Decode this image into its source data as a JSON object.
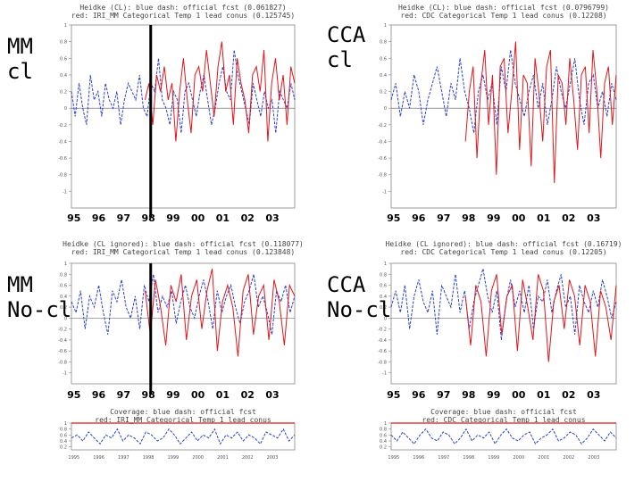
{
  "labels": {
    "mm_cl": [
      "MM",
      "cl"
    ],
    "cca_cl": [
      "CCA",
      "cl"
    ],
    "mm_nocl": [
      "MM",
      "No-cl"
    ],
    "cca_nocl": [
      "CCA",
      "No-cl"
    ]
  },
  "year_labels": [
    "95",
    "96",
    "97",
    "98",
    "99",
    "00",
    "01",
    "02",
    "03"
  ],
  "coverage_years": [
    "1995",
    "1996",
    "1997",
    "1998",
    "1999",
    "2000",
    "2001",
    "2002",
    "2003"
  ],
  "colors": {
    "official": "#2a3fcf",
    "tool": "#e0161b",
    "axis": "#888888",
    "marker": "#000000"
  },
  "chart_data": [
    {
      "type": "line",
      "title": "Heidke (CL): blue dash: official fcst (0.061827)",
      "subtitle": "red: IRI_MM Categorical Temp 1 lead conus (0.125745)",
      "ylim": [
        -1.2,
        1.0
      ],
      "yticks": [
        "1",
        "0.8",
        "0.6",
        "0.4",
        "0.2",
        "0",
        "-0.2",
        "-0.4",
        "-0.6",
        "-0.8",
        "-1"
      ],
      "series": [
        {
          "values": [
            0.2,
            -0.1,
            0.3,
            0.0,
            -0.2,
            0.4,
            0.1,
            0.2,
            -0.1,
            0.3,
            0.1,
            0.0,
            0.2,
            -0.2,
            0.1,
            0.3,
            0.2,
            0.1,
            0.4,
            0.0,
            -0.1,
            0.3,
            0.2,
            0.6,
            0.1,
            0.0,
            -0.2,
            0.2,
            0.1,
            -0.3,
            0.2,
            0.3,
            0.1,
            -0.1,
            0.2,
            0.4,
            0.1,
            -0.2,
            0.0,
            0.3,
            0.5,
            0.2,
            0.1,
            0.7,
            0.4,
            0.2,
            0.0,
            -0.2,
            0.3,
            0.1,
            -0.1,
            0.2,
            0.0,
            0.1,
            -0.3,
            0.2,
            0.1,
            0.0,
            0.3,
            0.1
          ]
        },
        {
          "values": [
            0.1,
            0.3,
            -0.2,
            0.4,
            0.2,
            0.5,
            0.1,
            0.3,
            -0.4,
            0.2,
            0.6,
            0.1,
            -0.3,
            0.4,
            0.5,
            0.2,
            0.7,
            0.3,
            -0.1,
            0.5,
            0.8,
            0.2,
            0.4,
            -0.2,
            0.6,
            0.3,
            0.1,
            -0.3,
            0.4,
            0.5,
            0.2,
            0.7,
            -0.4,
            0.3,
            0.6,
            0.1,
            0.4,
            -0.2,
            0.5,
            0.3
          ]
        }
      ]
    },
    {
      "type": "line",
      "title": "Heidke (CL): blue dash: official fcst (0.0796799)",
      "subtitle": "red: CDC Categorical Temp 1 lead conus (0.12208)",
      "ylim": [
        -1.2,
        1.0
      ],
      "yticks": [
        "1",
        "0.8",
        "0.6",
        "0.4",
        "0.2",
        "0",
        "-0.2",
        "-0.4",
        "-0.6",
        "-0.8",
        "-1"
      ],
      "series": [
        {
          "values": [
            0.1,
            0.3,
            -0.1,
            0.2,
            0.0,
            0.4,
            0.2,
            -0.2,
            0.1,
            0.3,
            0.5,
            0.2,
            -0.1,
            0.3,
            0.1,
            0.6,
            0.2,
            0.0,
            -0.3,
            0.2,
            0.4,
            0.1,
            0.3,
            -0.2,
            0.5,
            0.2,
            0.7,
            0.3,
            0.1,
            -0.1,
            0.2,
            0.4,
            0.0,
            0.3,
            -0.2,
            0.1,
            0.5,
            0.2,
            0.0,
            0.3,
            0.6,
            0.1,
            -0.2,
            0.3,
            0.4,
            0.0,
            0.2,
            -0.1,
            0.3,
            0.1
          ]
        },
        {
          "values": [
            -0.4,
            0.2,
            0.5,
            -0.6,
            0.3,
            0.7,
            -0.2,
            0.4,
            -0.8,
            0.5,
            0.6,
            -0.3,
            0.2,
            0.8,
            -0.5,
            0.4,
            0.3,
            -0.7,
            0.6,
            0.2,
            -0.4,
            0.5,
            0.7,
            -0.9,
            0.4,
            0.3,
            -0.2,
            0.6,
            0.1,
            -0.5,
            0.4,
            0.5,
            -0.3,
            0.7,
            0.2,
            -0.6,
            0.3,
            0.5,
            -0.2,
            0.4
          ]
        }
      ]
    },
    {
      "type": "line",
      "title": "Heidke (CL ignored): blue dash: official fcst (0.118077)",
      "subtitle": "red: IRI_MM Categorical Temp 1 lead conus (0.123848)",
      "ylim": [
        -1.2,
        1.0
      ],
      "yticks": [
        "1",
        "0.8",
        "0.6",
        "0.4",
        "0.2",
        "0",
        "-0.2",
        "-0.4",
        "-0.6",
        "-0.8",
        "-1"
      ],
      "series": [
        {
          "values": [
            0.3,
            0.1,
            0.5,
            -0.2,
            0.4,
            0.2,
            0.6,
            0.1,
            -0.3,
            0.5,
            0.3,
            0.7,
            0.2,
            0.0,
            0.4,
            -0.2,
            0.6,
            0.3,
            0.8,
            0.1,
            0.4,
            0.2,
            0.5,
            -0.1,
            0.3,
            0.6,
            0.2,
            0.0,
            0.4,
            0.7,
            0.3,
            -0.2,
            0.5,
            0.1,
            0.4,
            0.6,
            0.2,
            -0.1,
            0.3,
            0.5,
            0.8,
            0.2,
            0.4,
            0.1,
            -0.3,
            0.5,
            0.3,
            0.6,
            0.1,
            0.4
          ]
        },
        {
          "values": [
            0.5,
            -0.3,
            0.7,
            0.2,
            -0.5,
            0.6,
            0.3,
            0.8,
            -0.4,
            0.4,
            0.7,
            -0.2,
            0.5,
            0.9,
            -0.6,
            0.3,
            0.6,
            0.2,
            -0.7,
            0.5,
            0.8,
            -0.3,
            0.4,
            0.6,
            -0.4,
            0.7,
            0.3,
            -0.5,
            0.6,
            0.4
          ]
        }
      ]
    },
    {
      "type": "line",
      "title": "Heidke (CL ignored): blue dash: official fcst (0.16719)",
      "subtitle": "red: CDC Categorical Temp 1 lead conus (0.12205)",
      "ylim": [
        -1.2,
        1.0
      ],
      "yticks": [
        "1",
        "0.8",
        "0.6",
        "0.4",
        "0.2",
        "0",
        "-0.2",
        "-0.4",
        "-0.6",
        "-0.8",
        "-1"
      ],
      "series": [
        {
          "values": [
            0.2,
            0.5,
            0.1,
            0.6,
            -0.2,
            0.4,
            0.7,
            0.3,
            0.1,
            0.5,
            -0.3,
            0.6,
            0.4,
            0.2,
            0.8,
            0.1,
            0.5,
            -0.2,
            0.3,
            0.6,
            0.9,
            0.4,
            0.1,
            0.5,
            -0.4,
            0.3,
            0.7,
            0.2,
            0.5,
            0.1,
            0.6,
            -0.2,
            0.4,
            0.3,
            0.7,
            0.1,
            0.5,
            0.8,
            0.2,
            0.4,
            -0.3,
            0.6,
            0.3,
            0.1,
            0.5,
            0.2,
            0.7,
            0.4,
            0.0,
            0.3
          ]
        },
        {
          "values": [
            0.4,
            -0.5,
            0.6,
            0.3,
            -0.7,
            0.5,
            0.8,
            -0.3,
            0.4,
            0.6,
            -0.6,
            0.7,
            0.2,
            -0.4,
            0.8,
            0.5,
            -0.8,
            0.3,
            0.6,
            -0.2,
            0.7,
            0.4,
            -0.5,
            0.6,
            0.3,
            -0.7,
            0.5,
            0.2,
            -0.4,
            0.6
          ]
        }
      ]
    },
    {
      "type": "line",
      "title": "Coverage: blue dash: official fcst",
      "subtitle": "red: IRI_MM Categorical Temp 1 lead conus",
      "ylim": [
        0.1,
        1.0
      ],
      "yticks": [
        "1",
        "0.8",
        "0.6",
        "0.4",
        "0.2"
      ],
      "series": [
        {
          "values": [
            0.5,
            0.6,
            0.4,
            0.7,
            0.5,
            0.3,
            0.6,
            0.5,
            0.8,
            0.4,
            0.6,
            0.5,
            0.3,
            0.7,
            0.6,
            0.4,
            0.5,
            0.8,
            0.6,
            0.3,
            0.5,
            0.7,
            0.4,
            0.6,
            0.5,
            0.8,
            0.3,
            0.6,
            0.5,
            0.7,
            0.4,
            0.6,
            0.5,
            0.3,
            0.7,
            0.6,
            0.5,
            0.8,
            0.4,
            0.6
          ]
        },
        {
          "values": [
            1.0,
            1.0,
            1.0,
            1.0,
            1.0,
            1.0,
            1.0,
            1.0,
            1.0,
            1.0
          ]
        }
      ]
    },
    {
      "type": "line",
      "title": "Coverage: blue dash: official fcst",
      "subtitle": "red: CDC Categorical Temp 1 lead conus",
      "ylim": [
        0.1,
        1.0
      ],
      "yticks": [
        "1",
        "0.8",
        "0.6",
        "0.4",
        "0.2"
      ],
      "series": [
        {
          "values": [
            0.6,
            0.4,
            0.7,
            0.5,
            0.3,
            0.6,
            0.8,
            0.5,
            0.4,
            0.7,
            0.6,
            0.3,
            0.5,
            0.8,
            0.4,
            0.6,
            0.5,
            0.7,
            0.3,
            0.6,
            0.8,
            0.5,
            0.4,
            0.6,
            0.7,
            0.3,
            0.5,
            0.6,
            0.8,
            0.4,
            0.5,
            0.7,
            0.6,
            0.3,
            0.5,
            0.8,
            0.6,
            0.4,
            0.7,
            0.5
          ]
        },
        {
          "values": [
            1.0,
            1.0,
            1.0,
            1.0,
            1.0,
            1.0,
            1.0,
            1.0,
            1.0,
            1.0
          ]
        }
      ]
    }
  ]
}
